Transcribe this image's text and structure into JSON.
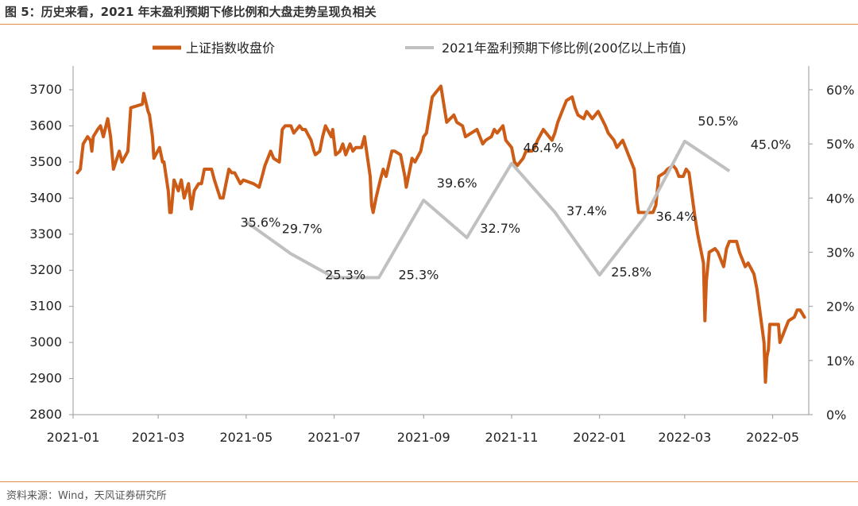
{
  "figure_title": "图 5：历史来看，2021 年末盈利预期下修比例和大盘走势呈现负相关",
  "source_note": "资料来源：Wind，天风证券研究所",
  "colors": {
    "index_line": "#cc5c16",
    "ratio_line": "#c0c0c0",
    "rule": "#e38a3f"
  },
  "chart_data": {
    "type": "line",
    "title": "图 5：历史来看，2021 年末盈利预期下修比例和大盘走势呈现负相关",
    "legend_placement": "top",
    "grid": false,
    "x_tick_labels": [
      "2021-01",
      "2021-03",
      "2021-05",
      "2021-07",
      "2021-09",
      "2021-11",
      "2022-01",
      "2022-03",
      "2022-05"
    ],
    "y_left": {
      "ylim": [
        2800,
        3700
      ],
      "ticks": [
        2800,
        2900,
        3000,
        3100,
        3200,
        3300,
        3400,
        3500,
        3600,
        3700
      ]
    },
    "y_right": {
      "ylim": [
        0,
        60
      ],
      "unit": "%",
      "ticks": [
        "0%",
        "10%",
        "20%",
        "30%",
        "40%",
        "50%",
        "60%"
      ]
    },
    "series": [
      {
        "name": "上证指数收盘价",
        "axis": "left",
        "points": [
          [
            "2021-01-04",
            3470
          ],
          [
            "2021-01-06",
            3480
          ],
          [
            "2021-01-08",
            3550
          ],
          [
            "2021-01-11",
            3570
          ],
          [
            "2021-01-13",
            3560
          ],
          [
            "2021-01-14",
            3530
          ],
          [
            "2021-01-15",
            3570
          ],
          [
            "2021-01-18",
            3590
          ],
          [
            "2021-01-20",
            3600
          ],
          [
            "2021-01-22",
            3570
          ],
          [
            "2021-01-25",
            3620
          ],
          [
            "2021-01-27",
            3570
          ],
          [
            "2021-01-29",
            3480
          ],
          [
            "2021-02-02",
            3530
          ],
          [
            "2021-02-04",
            3500
          ],
          [
            "2021-02-08",
            3530
          ],
          [
            "2021-02-10",
            3650
          ],
          [
            "2021-02-18",
            3660
          ],
          [
            "2021-02-19",
            3690
          ],
          [
            "2021-02-22",
            3640
          ],
          [
            "2021-02-23",
            3630
          ],
          [
            "2021-02-25",
            3570
          ],
          [
            "2021-02-26",
            3510
          ],
          [
            "2021-03-02",
            3540
          ],
          [
            "2021-03-04",
            3500
          ],
          [
            "2021-03-05",
            3500
          ],
          [
            "2021-03-08",
            3420
          ],
          [
            "2021-03-09",
            3360
          ],
          [
            "2021-03-10",
            3360
          ],
          [
            "2021-03-12",
            3450
          ],
          [
            "2021-03-15",
            3420
          ],
          [
            "2021-03-17",
            3450
          ],
          [
            "2021-03-19",
            3400
          ],
          [
            "2021-03-22",
            3440
          ],
          [
            "2021-03-24",
            3370
          ],
          [
            "2021-03-26",
            3420
          ],
          [
            "2021-03-29",
            3440
          ],
          [
            "2021-03-31",
            3440
          ],
          [
            "2021-04-02",
            3480
          ],
          [
            "2021-04-07",
            3480
          ],
          [
            "2021-04-09",
            3450
          ],
          [
            "2021-04-13",
            3400
          ],
          [
            "2021-04-15",
            3400
          ],
          [
            "2021-04-19",
            3480
          ],
          [
            "2021-04-21",
            3470
          ],
          [
            "2021-04-23",
            3470
          ],
          [
            "2021-04-27",
            3440
          ],
          [
            "2021-04-29",
            3450
          ],
          [
            "2021-05-06",
            3440
          ],
          [
            "2021-05-10",
            3430
          ],
          [
            "2021-05-12",
            3460
          ],
          [
            "2021-05-14",
            3490
          ],
          [
            "2021-05-18",
            3530
          ],
          [
            "2021-05-20",
            3510
          ],
          [
            "2021-05-24",
            3500
          ],
          [
            "2021-05-26",
            3590
          ],
          [
            "2021-05-28",
            3600
          ],
          [
            "2021-06-01",
            3600
          ],
          [
            "2021-06-03",
            3580
          ],
          [
            "2021-06-07",
            3600
          ],
          [
            "2021-06-09",
            3590
          ],
          [
            "2021-06-11",
            3590
          ],
          [
            "2021-06-15",
            3560
          ],
          [
            "2021-06-17",
            3530
          ],
          [
            "2021-06-18",
            3520
          ],
          [
            "2021-06-21",
            3530
          ],
          [
            "2021-06-23",
            3570
          ],
          [
            "2021-06-25",
            3600
          ],
          [
            "2021-06-29",
            3570
          ],
          [
            "2021-06-30",
            3590
          ],
          [
            "2021-07-02",
            3520
          ],
          [
            "2021-07-05",
            3530
          ],
          [
            "2021-07-07",
            3550
          ],
          [
            "2021-07-09",
            3520
          ],
          [
            "2021-07-12",
            3550
          ],
          [
            "2021-07-14",
            3530
          ],
          [
            "2021-07-16",
            3540
          ],
          [
            "2021-07-20",
            3540
          ],
          [
            "2021-07-22",
            3570
          ],
          [
            "2021-07-26",
            3460
          ],
          [
            "2021-07-27",
            3380
          ],
          [
            "2021-07-28",
            3360
          ],
          [
            "2021-07-30",
            3400
          ],
          [
            "2021-08-02",
            3450
          ],
          [
            "2021-08-04",
            3480
          ],
          [
            "2021-08-06",
            3460
          ],
          [
            "2021-08-10",
            3530
          ],
          [
            "2021-08-12",
            3530
          ],
          [
            "2021-08-16",
            3520
          ],
          [
            "2021-08-18",
            3480
          ],
          [
            "2021-08-19",
            3460
          ],
          [
            "2021-08-20",
            3430
          ],
          [
            "2021-08-24",
            3510
          ],
          [
            "2021-08-26",
            3500
          ],
          [
            "2021-08-30",
            3530
          ],
          [
            "2021-09-01",
            3570
          ],
          [
            "2021-09-03",
            3580
          ],
          [
            "2021-09-07",
            3680
          ],
          [
            "2021-09-09",
            3690
          ],
          [
            "2021-09-13",
            3710
          ],
          [
            "2021-09-15",
            3660
          ],
          [
            "2021-09-17",
            3610
          ],
          [
            "2021-09-22",
            3630
          ],
          [
            "2021-09-24",
            3610
          ],
          [
            "2021-09-28",
            3600
          ],
          [
            "2021-09-30",
            3570
          ],
          [
            "2021-10-08",
            3590
          ],
          [
            "2021-10-12",
            3550
          ],
          [
            "2021-10-14",
            3560
          ],
          [
            "2021-10-18",
            3570
          ],
          [
            "2021-10-20",
            3590
          ],
          [
            "2021-10-22",
            3580
          ],
          [
            "2021-10-26",
            3600
          ],
          [
            "2021-10-28",
            3560
          ],
          [
            "2021-11-01",
            3540
          ],
          [
            "2021-11-03",
            3500
          ],
          [
            "2021-11-05",
            3490
          ],
          [
            "2021-11-09",
            3510
          ],
          [
            "2021-11-11",
            3530
          ],
          [
            "2021-11-15",
            3530
          ],
          [
            "2021-11-17",
            3540
          ],
          [
            "2021-11-19",
            3560
          ],
          [
            "2021-11-23",
            3590
          ],
          [
            "2021-11-25",
            3580
          ],
          [
            "2021-11-29",
            3560
          ],
          [
            "2021-12-01",
            3580
          ],
          [
            "2021-12-03",
            3610
          ],
          [
            "2021-12-07",
            3650
          ],
          [
            "2021-12-09",
            3670
          ],
          [
            "2021-12-13",
            3680
          ],
          [
            "2021-12-15",
            3650
          ],
          [
            "2021-12-17",
            3630
          ],
          [
            "2021-12-21",
            3620
          ],
          [
            "2021-12-23",
            3640
          ],
          [
            "2021-12-27",
            3620
          ],
          [
            "2021-12-31",
            3640
          ],
          [
            "2022-01-05",
            3600
          ],
          [
            "2022-01-07",
            3580
          ],
          [
            "2022-01-11",
            3560
          ],
          [
            "2022-01-13",
            3540
          ],
          [
            "2022-01-17",
            3560
          ],
          [
            "2022-01-19",
            3540
          ],
          [
            "2022-01-21",
            3520
          ],
          [
            "2022-01-25",
            3480
          ],
          [
            "2022-01-27",
            3390
          ],
          [
            "2022-01-28",
            3360
          ],
          [
            "2022-02-07",
            3360
          ],
          [
            "2022-02-09",
            3380
          ],
          [
            "2022-02-11",
            3460
          ],
          [
            "2022-02-15",
            3470
          ],
          [
            "2022-02-17",
            3480
          ],
          [
            "2022-02-21",
            3490
          ],
          [
            "2022-02-23",
            3480
          ],
          [
            "2022-02-25",
            3460
          ],
          [
            "2022-02-28",
            3460
          ],
          [
            "2022-03-02",
            3480
          ],
          [
            "2022-03-04",
            3470
          ],
          [
            "2022-03-08",
            3350
          ],
          [
            "2022-03-10",
            3300
          ],
          [
            "2022-03-14",
            3220
          ],
          [
            "2022-03-15",
            3060
          ],
          [
            "2022-03-16",
            3170
          ],
          [
            "2022-03-18",
            3250
          ],
          [
            "2022-03-22",
            3260
          ],
          [
            "2022-03-24",
            3250
          ],
          [
            "2022-03-28",
            3210
          ],
          [
            "2022-03-30",
            3260
          ],
          [
            "2022-04-01",
            3280
          ],
          [
            "2022-04-06",
            3280
          ],
          [
            "2022-04-08",
            3250
          ],
          [
            "2022-04-12",
            3210
          ],
          [
            "2022-04-14",
            3220
          ],
          [
            "2022-04-18",
            3190
          ],
          [
            "2022-04-20",
            3150
          ],
          [
            "2022-04-22",
            3090
          ],
          [
            "2022-04-25",
            3000
          ],
          [
            "2022-04-26",
            2890
          ],
          [
            "2022-04-27",
            2960
          ],
          [
            "2022-04-28",
            2980
          ],
          [
            "2022-04-29",
            3050
          ],
          [
            "2022-05-05",
            3050
          ],
          [
            "2022-05-06",
            3000
          ],
          [
            "2022-05-10",
            3040
          ],
          [
            "2022-05-12",
            3060
          ],
          [
            "2022-05-16",
            3070
          ],
          [
            "2022-05-18",
            3090
          ],
          [
            "2022-05-20",
            3090
          ],
          [
            "2022-05-23",
            3070
          ]
        ]
      },
      {
        "name": "2021年盈利预期下修比例(200亿以上市值)",
        "axis": "right",
        "points": [
          [
            "2021-05-01",
            35.6
          ],
          [
            "2021-06-01",
            29.7
          ],
          [
            "2021-07-01",
            25.3
          ],
          [
            "2021-08-01",
            25.3
          ],
          [
            "2021-09-01",
            39.6
          ],
          [
            "2021-10-01",
            32.7
          ],
          [
            "2021-11-01",
            46.4
          ],
          [
            "2021-12-01",
            37.4
          ],
          [
            "2022-01-01",
            25.8
          ],
          [
            "2022-02-01",
            36.4
          ],
          [
            "2022-03-01",
            50.5
          ],
          [
            "2022-04-01",
            45.0
          ]
        ],
        "data_labels": [
          "35.6%",
          "29.7%",
          "25.3%",
          "25.3%",
          "39.6%",
          "32.7%",
          "46.4%",
          "37.4%",
          "25.8%",
          "36.4%",
          "50.5%",
          "45.0%"
        ]
      }
    ]
  }
}
